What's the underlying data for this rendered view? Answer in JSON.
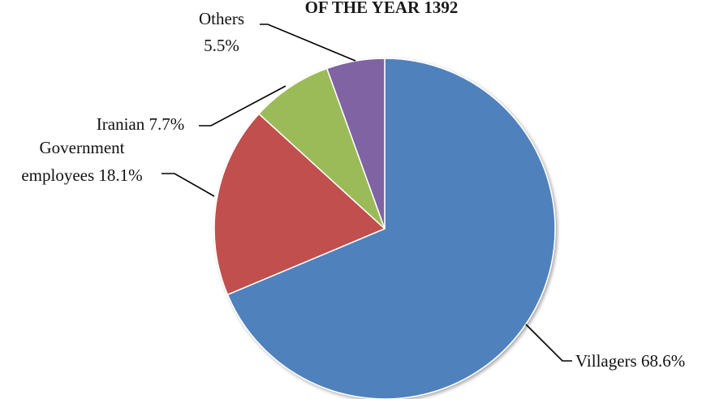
{
  "chart_data": {
    "type": "pie",
    "title": "OF THE YEAR 1392",
    "start_angle_deg": 0,
    "direction": "clockwise",
    "slices": [
      {
        "label": "Villagers",
        "value": 68.6,
        "pct_label": "68.6%",
        "color": "#4F81BD"
      },
      {
        "label": "Government employees",
        "value": 18.1,
        "pct_label": "18.1%",
        "color": "#C0504D"
      },
      {
        "label": "Iranian",
        "value": 7.7,
        "pct_label": "7.7%",
        "color": "#9BBB59"
      },
      {
        "label": "Others",
        "value": 5.5,
        "pct_label": "5.5%",
        "color": "#8064A2"
      }
    ]
  },
  "labels": {
    "villagers": "Villagers 68.6%",
    "government_line1": "Government",
    "government_line2": "employees 18.1%",
    "iranian": "Iranian 7.7%",
    "others_line1": "Others",
    "others_line2": "5.5%"
  }
}
